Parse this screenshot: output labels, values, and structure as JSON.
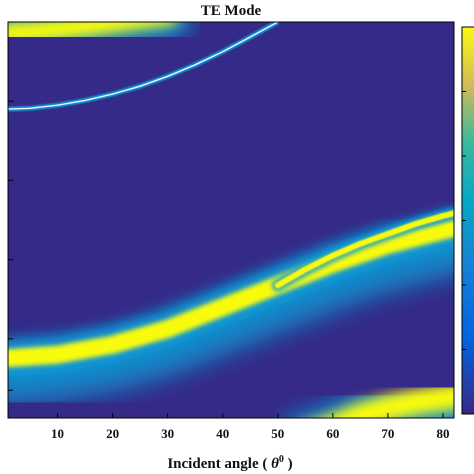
{
  "chart_data": {
    "type": "heatmap",
    "title": "TE Mode",
    "xlabel_prefix": "Incident angle ( ",
    "xlabel_theta": "θ",
    "xlabel_sup": "0",
    "xlabel_suffix": " )",
    "ylabel": "",
    "xlim": [
      1,
      82
    ],
    "ylim": [
      0,
      1
    ],
    "x_ticks": [
      10,
      20,
      30,
      40,
      50,
      60,
      70,
      80
    ],
    "x_tick_labels": [
      "10",
      "20",
      "30",
      "40",
      "50",
      "60",
      "70",
      "80"
    ],
    "y_ticks": [
      0.07,
      0.2,
      0.4,
      0.6,
      0.8,
      1.0
    ],
    "colormap": "parula",
    "colorbar": true,
    "colors": {
      "background": "#352a87",
      "low": "#352a87",
      "mid": "#0f9bd7",
      "high": "#f9fb0e"
    },
    "features": [
      {
        "name": "upper-left bright band",
        "x": [
          1,
          5,
          10,
          15,
          20,
          25,
          30
        ],
        "y": [
          0.972,
          0.975,
          0.982,
          0.99,
          1.0,
          1.01,
          1.02
        ]
      },
      {
        "name": "thin resonance line",
        "x": [
          1,
          5,
          10,
          15,
          20,
          25,
          30,
          35,
          40,
          45,
          50
        ],
        "y": [
          0.78,
          0.782,
          0.79,
          0.802,
          0.818,
          0.838,
          0.863,
          0.892,
          0.925,
          0.962,
          1.0
        ]
      },
      {
        "name": "main bright band",
        "x": [
          1,
          10,
          20,
          30,
          40,
          50,
          60,
          70,
          80,
          82
        ],
        "y": [
          0.151,
          0.16,
          0.185,
          0.225,
          0.28,
          0.335,
          0.39,
          0.437,
          0.473,
          0.48
        ]
      },
      {
        "name": "double branch upper",
        "x": [
          50,
          55,
          60,
          65,
          70,
          75,
          80,
          82
        ],
        "y": [
          0.335,
          0.375,
          0.41,
          0.44,
          0.465,
          0.49,
          0.51,
          0.517
        ]
      },
      {
        "name": "lower-right bright band",
        "x": [
          55,
          60,
          65,
          70,
          75,
          80,
          82
        ],
        "y": [
          -0.05,
          -0.025,
          0.005,
          0.025,
          0.04,
          0.05,
          0.055
        ]
      }
    ]
  }
}
